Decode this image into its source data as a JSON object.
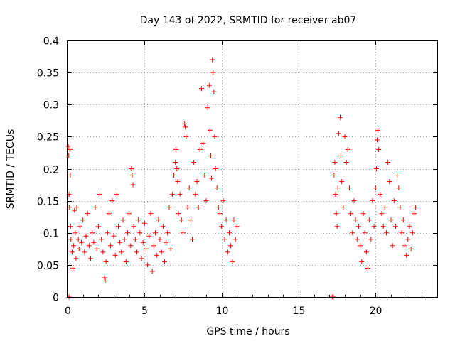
{
  "chart_data": {
    "type": "scatter",
    "title": "Day 143 of 2022, SRMTID for receiver ab07",
    "xlabel": "GPS time / hours",
    "ylabel": "SRMTID / TECUs",
    "xlim": [
      0,
      24
    ],
    "ylim": [
      0,
      0.4
    ],
    "xticks": [
      0,
      5,
      10,
      15,
      20
    ],
    "yticks": [
      0,
      0.05,
      0.1,
      0.15,
      0.2,
      0.25,
      0.3,
      0.35,
      0.4
    ],
    "xtick_labels": [
      "0",
      "5",
      "10",
      "15",
      "20"
    ],
    "ytick_labels": [
      "0",
      "0.05",
      "0.1",
      "0.15",
      "0.2",
      "0.25",
      "0.3",
      "0.35",
      "0.4"
    ],
    "grid": true,
    "marker": "+",
    "color": "#ff0000",
    "series": [
      {
        "name": "SRMTID",
        "points": [
          [
            0.05,
            0.235
          ],
          [
            0.08,
            0.22
          ],
          [
            0.1,
            0.16
          ],
          [
            0.12,
            0.14
          ],
          [
            0.15,
            0.23
          ],
          [
            0.18,
            0.19
          ],
          [
            0.2,
            0.11
          ],
          [
            0.22,
            0.09
          ],
          [
            0.3,
            0.07
          ],
          [
            0.35,
            0.045
          ],
          [
            0.4,
            0.08
          ],
          [
            0.45,
            0.135
          ],
          [
            0.5,
            0.1
          ],
          [
            0.55,
            0.06
          ],
          [
            0.6,
            0.14
          ],
          [
            0.7,
            0.09
          ],
          [
            0.75,
            0.075
          ],
          [
            0.8,
            0.11
          ],
          [
            0.9,
            0.085
          ],
          [
            1.0,
            0.12
          ],
          [
            1.1,
            0.07
          ],
          [
            1.2,
            0.095
          ],
          [
            1.3,
            0.13
          ],
          [
            1.4,
            0.08
          ],
          [
            1.5,
            0.06
          ],
          [
            1.6,
            0.1
          ],
          [
            1.7,
            0.085
          ],
          [
            1.8,
            0.14
          ],
          [
            1.9,
            0.075
          ],
          [
            2.0,
            0.11
          ],
          [
            2.1,
            0.16
          ],
          [
            2.2,
            0.09
          ],
          [
            2.3,
            0.07
          ],
          [
            2.4,
            0.03
          ],
          [
            2.45,
            0.025
          ],
          [
            2.5,
            0.055
          ],
          [
            2.6,
            0.1
          ],
          [
            2.7,
            0.13
          ],
          [
            2.8,
            0.08
          ],
          [
            2.9,
            0.15
          ],
          [
            3.0,
            0.095
          ],
          [
            3.1,
            0.065
          ],
          [
            3.2,
            0.16
          ],
          [
            3.3,
            0.11
          ],
          [
            3.4,
            0.085
          ],
          [
            3.5,
            0.07
          ],
          [
            3.6,
            0.12
          ],
          [
            3.7,
            0.09
          ],
          [
            3.8,
            0.055
          ],
          [
            3.9,
            0.1
          ],
          [
            4.0,
            0.13
          ],
          [
            4.1,
            0.08
          ],
          [
            4.15,
            0.2
          ],
          [
            4.2,
            0.19
          ],
          [
            4.25,
            0.175
          ],
          [
            4.3,
            0.11
          ],
          [
            4.4,
            0.09
          ],
          [
            4.5,
            0.07
          ],
          [
            4.6,
            0.12
          ],
          [
            4.7,
            0.1
          ],
          [
            4.8,
            0.06
          ],
          [
            4.9,
            0.085
          ],
          [
            5.0,
            0.115
          ],
          [
            5.1,
            0.075
          ],
          [
            5.2,
            0.05
          ],
          [
            5.3,
            0.095
          ],
          [
            5.4,
            0.13
          ],
          [
            5.5,
            0.04
          ],
          [
            5.6,
            0.08
          ],
          [
            5.7,
            0.1
          ],
          [
            5.8,
            0.065
          ],
          [
            5.9,
            0.12
          ],
          [
            6.0,
            0.09
          ],
          [
            6.1,
            0.07
          ],
          [
            6.2,
            0.11
          ],
          [
            6.3,
            0.055
          ],
          [
            6.4,
            0.085
          ],
          [
            6.5,
            0.1
          ],
          [
            6.6,
            0.14
          ],
          [
            6.7,
            0.075
          ],
          [
            6.8,
            0.16
          ],
          [
            6.9,
            0.19
          ],
          [
            7.0,
            0.21
          ],
          [
            7.05,
            0.23
          ],
          [
            7.1,
            0.2
          ],
          [
            7.15,
            0.18
          ],
          [
            7.2,
            0.13
          ],
          [
            7.3,
            0.16
          ],
          [
            7.4,
            0.12
          ],
          [
            7.5,
            0.1
          ],
          [
            7.6,
            0.27
          ],
          [
            7.65,
            0.265
          ],
          [
            7.7,
            0.25
          ],
          [
            7.8,
            0.14
          ],
          [
            7.9,
            0.17
          ],
          [
            8.0,
            0.12
          ],
          [
            8.1,
            0.09
          ],
          [
            8.2,
            0.21
          ],
          [
            8.3,
            0.16
          ],
          [
            8.4,
            0.18
          ],
          [
            8.5,
            0.14
          ],
          [
            8.6,
            0.23
          ],
          [
            8.7,
            0.325
          ],
          [
            8.8,
            0.24
          ],
          [
            8.9,
            0.19
          ],
          [
            9.0,
            0.15
          ],
          [
            9.1,
            0.295
          ],
          [
            9.2,
            0.33
          ],
          [
            9.25,
            0.26
          ],
          [
            9.3,
            0.22
          ],
          [
            9.35,
            0.185
          ],
          [
            9.4,
            0.37
          ],
          [
            9.45,
            0.35
          ],
          [
            9.5,
            0.32
          ],
          [
            9.55,
            0.25
          ],
          [
            9.6,
            0.2
          ],
          [
            9.7,
            0.17
          ],
          [
            9.8,
            0.14
          ],
          [
            9.9,
            0.13
          ],
          [
            10.0,
            0.11
          ],
          [
            10.1,
            0.15
          ],
          [
            10.2,
            0.09
          ],
          [
            10.3,
            0.12
          ],
          [
            10.4,
            0.07
          ],
          [
            10.5,
            0.1
          ],
          [
            10.6,
            0.08
          ],
          [
            10.7,
            0.055
          ],
          [
            10.8,
            0.12
          ],
          [
            10.9,
            0.09
          ],
          [
            11.0,
            0.11
          ],
          [
            0.1,
            0.0
          ],
          [
            17.2,
            0.0
          ],
          [
            17.25,
            0.0
          ],
          [
            17.3,
            0.19
          ],
          [
            17.35,
            0.21
          ],
          [
            17.4,
            0.16
          ],
          [
            17.45,
            0.13
          ],
          [
            17.5,
            0.11
          ],
          [
            17.55,
            0.17
          ],
          [
            17.6,
            0.255
          ],
          [
            17.7,
            0.28
          ],
          [
            17.75,
            0.22
          ],
          [
            17.8,
            0.18
          ],
          [
            17.9,
            0.14
          ],
          [
            18.0,
            0.25
          ],
          [
            18.1,
            0.21
          ],
          [
            18.2,
            0.23
          ],
          [
            18.3,
            0.17
          ],
          [
            18.4,
            0.13
          ],
          [
            18.5,
            0.1
          ],
          [
            18.6,
            0.15
          ],
          [
            18.7,
            0.12
          ],
          [
            18.8,
            0.09
          ],
          [
            18.9,
            0.11
          ],
          [
            19.0,
            0.08
          ],
          [
            19.1,
            0.055
          ],
          [
            19.2,
            0.13
          ],
          [
            19.3,
            0.1
          ],
          [
            19.4,
            0.07
          ],
          [
            19.5,
            0.045
          ],
          [
            19.6,
            0.12
          ],
          [
            19.7,
            0.09
          ],
          [
            19.8,
            0.15
          ],
          [
            19.9,
            0.11
          ],
          [
            20.0,
            0.17
          ],
          [
            20.05,
            0.2
          ],
          [
            20.1,
            0.245
          ],
          [
            20.15,
            0.26
          ],
          [
            20.2,
            0.23
          ],
          [
            20.3,
            0.16
          ],
          [
            20.4,
            0.13
          ],
          [
            20.5,
            0.11
          ],
          [
            20.6,
            0.14
          ],
          [
            20.7,
            0.1
          ],
          [
            20.8,
            0.21
          ],
          [
            20.9,
            0.18
          ],
          [
            21.0,
            0.12
          ],
          [
            21.1,
            0.08
          ],
          [
            21.2,
            0.15
          ],
          [
            21.3,
            0.11
          ],
          [
            21.4,
            0.19
          ],
          [
            21.5,
            0.17
          ],
          [
            21.6,
            0.14
          ],
          [
            21.7,
            0.1
          ],
          [
            21.8,
            0.12
          ],
          [
            21.9,
            0.08
          ],
          [
            22.0,
            0.065
          ],
          [
            22.1,
            0.09
          ],
          [
            22.2,
            0.11
          ],
          [
            22.3,
            0.075
          ],
          [
            22.4,
            0.1
          ],
          [
            22.5,
            0.13
          ],
          [
            22.6,
            0.14
          ]
        ]
      }
    ]
  }
}
